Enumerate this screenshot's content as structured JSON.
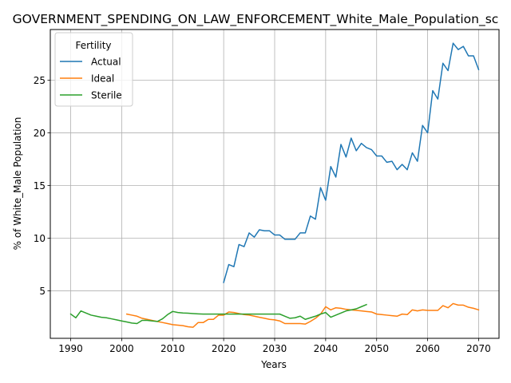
{
  "chart_data": {
    "type": "line",
    "title": "GOVERNMENT_SPENDING_ON_LAW_ENFORCEMENT_White_Male_Population_sc",
    "xlabel": "Years",
    "ylabel": "% of White_Male Population",
    "xlim": [
      1986,
      2074
    ],
    "ylim": [
      0.5,
      29.8
    ],
    "xticks": [
      1990,
      2000,
      2010,
      2020,
      2030,
      2040,
      2050,
      2060,
      2070
    ],
    "yticks": [
      5,
      10,
      15,
      20,
      25
    ],
    "grid": true,
    "legend": {
      "title": "Fertility",
      "placement": "top-left"
    },
    "series": [
      {
        "name": "Actual",
        "color": "#1f77b4",
        "x": [
          2020,
          2021,
          2022,
          2023,
          2024,
          2025,
          2026,
          2027,
          2028,
          2029,
          2030,
          2031,
          2032,
          2033,
          2034,
          2035,
          2036,
          2037,
          2038,
          2039,
          2040,
          2041,
          2042,
          2043,
          2044,
          2045,
          2046,
          2047,
          2048,
          2049,
          2050,
          2051,
          2052,
          2053,
          2054,
          2055,
          2056,
          2057,
          2058,
          2059,
          2060,
          2061,
          2062,
          2063,
          2064,
          2065,
          2066,
          2067,
          2068,
          2069,
          2070
        ],
        "values": [
          5.8,
          7.5,
          7.3,
          9.4,
          9.2,
          10.5,
          10.1,
          10.8,
          10.7,
          10.7,
          10.3,
          10.3,
          9.9,
          9.9,
          9.9,
          10.5,
          10.5,
          12.1,
          11.8,
          14.8,
          13.6,
          16.8,
          15.8,
          18.9,
          17.7,
          19.5,
          18.3,
          19.0,
          18.6,
          18.4,
          17.8,
          17.8,
          17.2,
          17.3,
          16.5,
          17.0,
          16.5,
          18.1,
          17.3,
          20.7,
          20.0,
          24.0,
          23.2,
          26.6,
          25.9,
          28.5,
          27.9,
          28.2,
          27.3,
          27.3,
          26.0
        ]
      },
      {
        "name": "Ideal",
        "color": "#ff7f0e",
        "x": [
          2001,
          2002,
          2003,
          2004,
          2005,
          2006,
          2007,
          2008,
          2009,
          2010,
          2011,
          2012,
          2013,
          2014,
          2015,
          2016,
          2017,
          2018,
          2019,
          2020,
          2021,
          2022,
          2023,
          2024,
          2025,
          2026,
          2027,
          2028,
          2029,
          2030,
          2031,
          2032,
          2033,
          2034,
          2035,
          2036,
          2037,
          2038,
          2039,
          2040,
          2041,
          2042,
          2043,
          2044,
          2045,
          2046,
          2047,
          2048,
          2049,
          2050,
          2051,
          2052,
          2053,
          2054,
          2055,
          2056,
          2057,
          2058,
          2059,
          2060,
          2061,
          2062,
          2063,
          2064,
          2065,
          2066,
          2067,
          2068,
          2069,
          2070
        ],
        "values": [
          2.8,
          2.7,
          2.6,
          2.4,
          2.3,
          2.2,
          2.1,
          2.0,
          1.9,
          1.8,
          1.75,
          1.7,
          1.6,
          1.55,
          2.0,
          2.0,
          2.3,
          2.3,
          2.7,
          2.7,
          3.0,
          2.95,
          2.85,
          2.75,
          2.7,
          2.6,
          2.5,
          2.4,
          2.3,
          2.25,
          2.15,
          1.9,
          1.9,
          1.9,
          1.9,
          1.85,
          2.1,
          2.4,
          2.8,
          3.5,
          3.2,
          3.4,
          3.35,
          3.25,
          3.2,
          3.15,
          3.1,
          3.05,
          3.0,
          2.8,
          2.75,
          2.7,
          2.65,
          2.6,
          2.8,
          2.75,
          3.2,
          3.1,
          3.2,
          3.15,
          3.15,
          3.15,
          3.6,
          3.4,
          3.8,
          3.65,
          3.65,
          3.45,
          3.35,
          3.2
        ]
      },
      {
        "name": "Sterile",
        "color": "#2ca02c",
        "x": [
          1990,
          1991,
          1992,
          1993,
          1994,
          1995,
          1996,
          1997,
          1998,
          1999,
          2000,
          2001,
          2002,
          2003,
          2004,
          2005,
          2006,
          2007,
          2008,
          2009,
          2010,
          2011,
          2012,
          2013,
          2014,
          2015,
          2016,
          2017,
          2018,
          2019,
          2020,
          2021,
          2022,
          2023,
          2024,
          2025,
          2026,
          2027,
          2028,
          2029,
          2030,
          2031,
          2032,
          2033,
          2034,
          2035,
          2036,
          2037,
          2038,
          2039,
          2040,
          2041,
          2042,
          2043,
          2044,
          2045,
          2046,
          2047,
          2048
        ],
        "values": [
          2.8,
          2.45,
          3.1,
          2.9,
          2.7,
          2.6,
          2.5,
          2.45,
          2.35,
          2.25,
          2.15,
          2.05,
          1.95,
          1.9,
          2.2,
          2.2,
          2.15,
          2.1,
          2.35,
          2.75,
          3.05,
          2.95,
          2.9,
          2.88,
          2.85,
          2.82,
          2.8,
          2.8,
          2.8,
          2.8,
          2.8,
          2.8,
          2.8,
          2.8,
          2.8,
          2.8,
          2.8,
          2.8,
          2.8,
          2.8,
          2.8,
          2.8,
          2.6,
          2.4,
          2.45,
          2.6,
          2.3,
          2.45,
          2.6,
          2.8,
          2.95,
          2.5,
          2.7,
          2.9,
          3.1,
          3.2,
          3.3,
          3.5,
          3.7
        ]
      }
    ]
  }
}
